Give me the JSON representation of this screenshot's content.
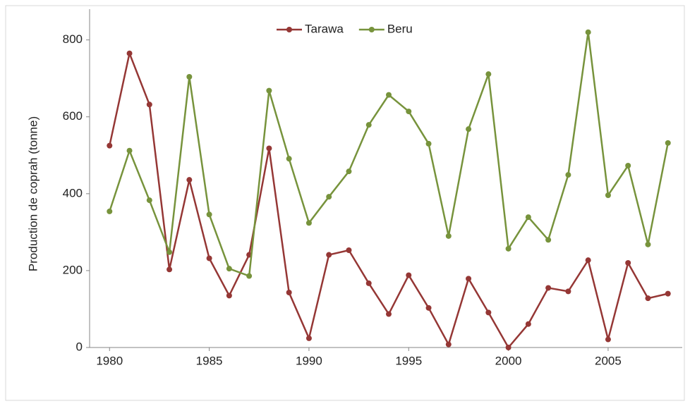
{
  "chart_data": {
    "type": "line",
    "y_label": "Production de coprah (tonne)",
    "x": [
      1980,
      1981,
      1982,
      1983,
      1984,
      1985,
      1986,
      1987,
      1988,
      1989,
      1990,
      1991,
      1992,
      1993,
      1994,
      1995,
      1996,
      1997,
      1998,
      1999,
      2000,
      2001,
      2002,
      2003,
      2004,
      2005,
      2006,
      2007,
      2008
    ],
    "series": [
      {
        "name": "Tarawa",
        "color": "#953735",
        "values": [
          525,
          765,
          632,
          203,
          436,
          232,
          135,
          241,
          518,
          143,
          24,
          241,
          253,
          167,
          87,
          188,
          103,
          8,
          179,
          91,
          0,
          61,
          155,
          146,
          227,
          21,
          220,
          128,
          140
        ]
      },
      {
        "name": "Beru",
        "color": "#77933c",
        "values": [
          354,
          512,
          383,
          248,
          704,
          346,
          205,
          186,
          668,
          491,
          324,
          392,
          458,
          579,
          657,
          614,
          530,
          290,
          568,
          711,
          257,
          339,
          280,
          449,
          820,
          396,
          473,
          268,
          532
        ]
      }
    ],
    "xlim": [
      1979,
      2009
    ],
    "xticks": [
      1980,
      1985,
      1990,
      1995,
      2000,
      2005
    ],
    "ylim": [
      0,
      880
    ],
    "yticks": [
      0,
      200,
      400,
      600,
      800
    ],
    "legend": "top"
  }
}
